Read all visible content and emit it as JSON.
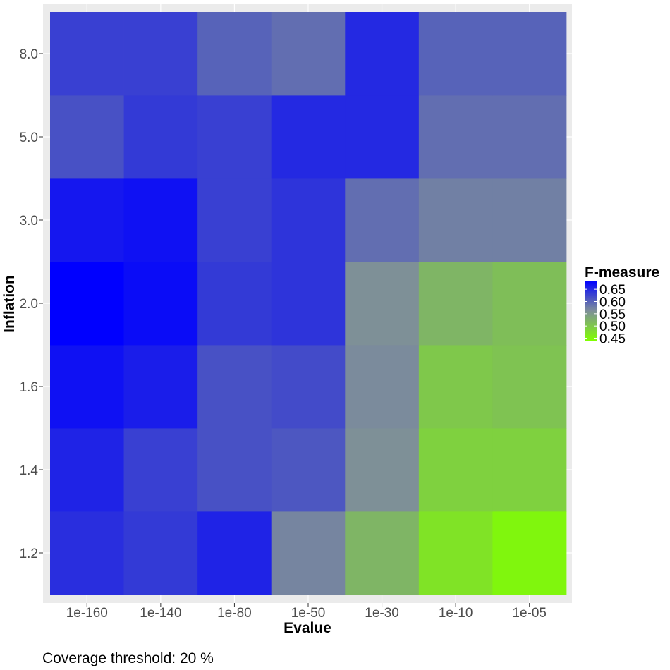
{
  "chart_data": {
    "type": "heatmap",
    "title": "",
    "xlabel": "Evalue",
    "ylabel": "Inflation",
    "x_categories": [
      "1e-160",
      "1e-140",
      "1e-80",
      "1e-50",
      "1e-30",
      "1e-10",
      "1e-05"
    ],
    "y_categories": [
      "1.2",
      "1.4",
      "1.6",
      "2.0",
      "3.0",
      "5.0",
      "8.0"
    ],
    "y_tick_labels": [
      "1.2",
      "1.4",
      "1.6",
      "2.0",
      "3.0",
      "5.0",
      "8.0"
    ],
    "values": [
      [
        0.645,
        0.635,
        0.655,
        0.57,
        0.52,
        0.47,
        0.45
      ],
      [
        0.655,
        0.63,
        0.615,
        0.61,
        0.56,
        0.49,
        0.49
      ],
      [
        0.67,
        0.66,
        0.615,
        0.62,
        0.565,
        0.5,
        0.505
      ],
      [
        0.685,
        0.675,
        0.635,
        0.64,
        0.56,
        0.52,
        0.51
      ],
      [
        0.665,
        0.67,
        0.63,
        0.64,
        0.59,
        0.575,
        0.575
      ],
      [
        0.615,
        0.635,
        0.63,
        0.65,
        0.65,
        0.59,
        0.59
      ],
      [
        0.63,
        0.63,
        0.6,
        0.59,
        0.65,
        0.6,
        0.6
      ]
    ],
    "color_scale": {
      "low": "#80ff00",
      "mid": "#7e8e9a",
      "high": "#0000ff",
      "limits": [
        0.44,
        0.685
      ]
    },
    "legend": {
      "title": "F-measure",
      "labels": [
        "0.65",
        "0.60",
        "0.55",
        "0.50",
        "0.45"
      ],
      "values": [
        0.65,
        0.6,
        0.55,
        0.5,
        0.45
      ],
      "placement": "right"
    },
    "panel_background": "#ebebeb",
    "grid": true
  },
  "caption": "Coverage threshold: 20 %"
}
